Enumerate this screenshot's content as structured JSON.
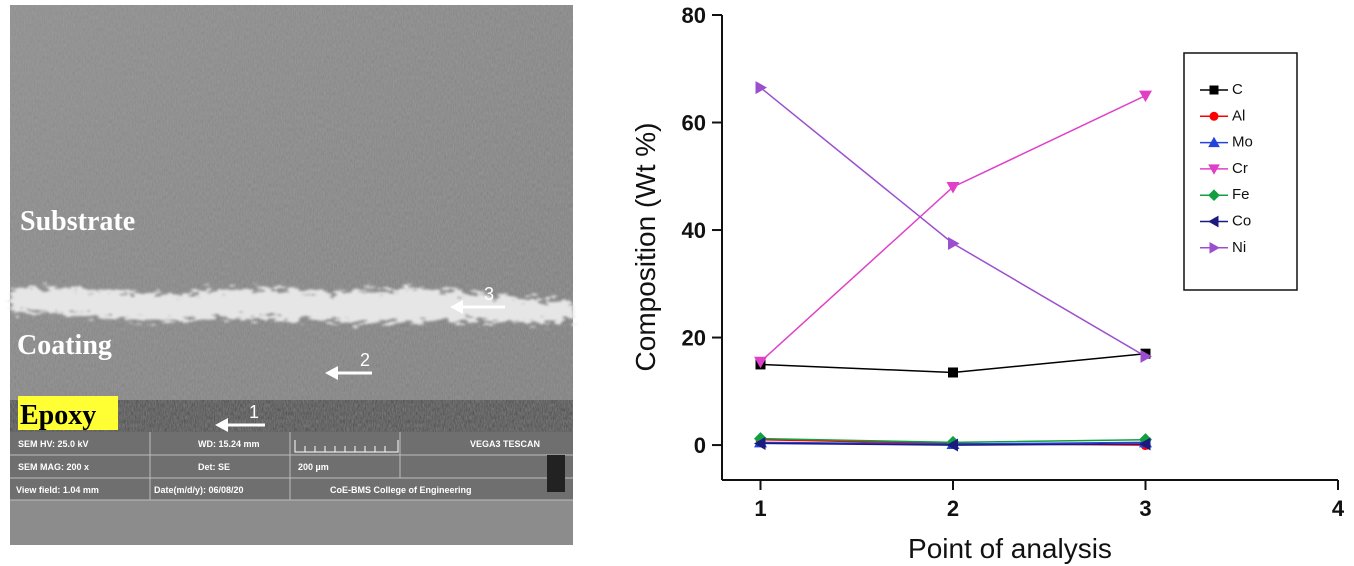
{
  "image": {
    "labels": {
      "substrate": "Substrate",
      "coating": "Coating",
      "epoxy": "Epoxy"
    },
    "points": [
      "1",
      "2",
      "3"
    ],
    "info_bar": [
      [
        "SEM HV: 25.0 kV",
        "WD: 15.24 mm",
        "VEGA3 TESCAN"
      ],
      [
        "SEM MAG: 200 x",
        "Det: SE",
        "200 µm"
      ],
      [
        "View field: 1.04 mm",
        "Date(m/d/y): 06/08/20",
        "CoE-BMS College of Engineering"
      ]
    ]
  },
  "chart_data": {
    "type": "line",
    "x_label": "Point of analysis",
    "y_label": "Composition (Wt %)",
    "x": [
      1,
      2,
      3
    ],
    "xlim": [
      0.8,
      4
    ],
    "xticks": [
      1,
      2,
      3,
      4
    ],
    "ylim": [
      -6.5,
      80
    ],
    "yticks": [
      0,
      20,
      40,
      60,
      80
    ],
    "legend": "upper right",
    "series": [
      {
        "name": "C",
        "color": "#000000",
        "marker": "square",
        "values": [
          15,
          13.5,
          17
        ]
      },
      {
        "name": "Al",
        "color": "#ff0000",
        "marker": "circle",
        "values": [
          1,
          0.3,
          0
        ]
      },
      {
        "name": "Mo",
        "color": "#2244dd",
        "marker": "triangle-up",
        "values": [
          0.5,
          0.2,
          0.5
        ]
      },
      {
        "name": "Cr",
        "color": "#e040c8",
        "marker": "triangle-down",
        "values": [
          15.5,
          48,
          65
        ]
      },
      {
        "name": "Fe",
        "color": "#10a040",
        "marker": "diamond",
        "values": [
          1.2,
          0.5,
          1
        ]
      },
      {
        "name": "Co",
        "color": "#1a1a80",
        "marker": "triangle-left",
        "values": [
          0.3,
          0,
          0.2
        ]
      },
      {
        "name": "Ni",
        "color": "#9b4fcf",
        "marker": "triangle-right",
        "values": [
          66.5,
          37.5,
          16.5
        ]
      }
    ]
  }
}
